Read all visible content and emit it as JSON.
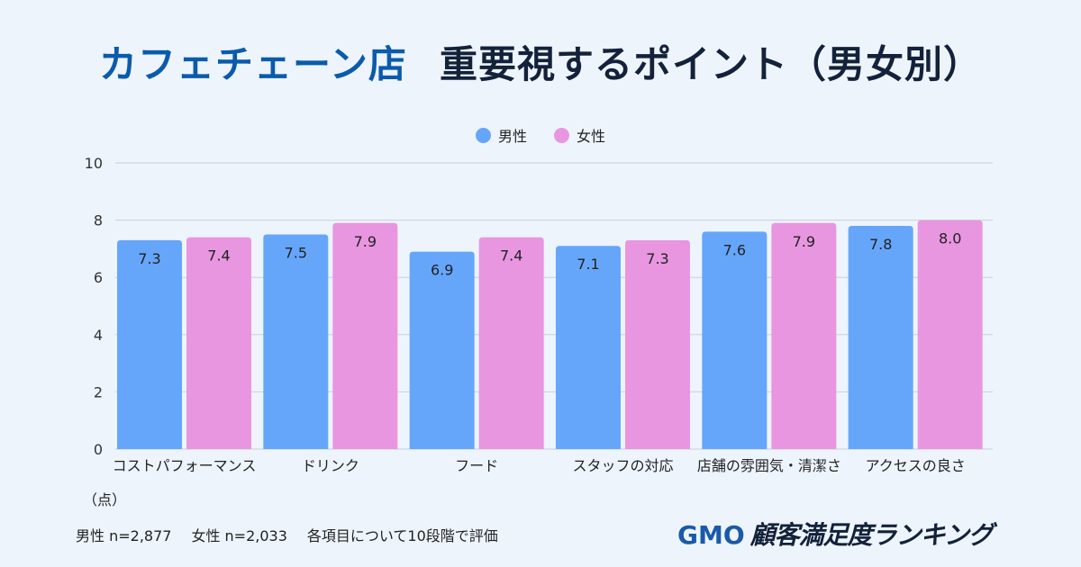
{
  "title": {
    "part1": "カフェチェーン店",
    "part2": "重要視するポイント（男女別）"
  },
  "unit_label": "（点）",
  "footer": {
    "male_n": "男性 n=2,877",
    "female_n": "女性 n=2,033",
    "note": "各項目について10段階で評価"
  },
  "logo": {
    "brand": "GMO",
    "text": "顧客満足度ランキング"
  },
  "chart_data": {
    "type": "bar",
    "title": "カフェチェーン店　重要視するポイント（男女別）",
    "ylabel": "（点）",
    "ylim": [
      0,
      10
    ],
    "yticks": [
      "0",
      "2",
      "4",
      "6",
      "8",
      "10"
    ],
    "grid": true,
    "legend_placement": "top-center",
    "categories": [
      "コストパフォーマンス",
      "ドリンク",
      "フード",
      "スタッフの対応",
      "店舗の雰囲気・清潔さ",
      "アクセスの良さ"
    ],
    "series": [
      {
        "name": "男性",
        "color": "#66a6fa",
        "values": [
          7.3,
          7.5,
          6.9,
          7.1,
          7.6,
          7.8
        ],
        "labels": [
          "7.3",
          "7.5",
          "6.9",
          "7.1",
          "7.6",
          "7.8"
        ]
      },
      {
        "name": "女性",
        "color": "#e996e0",
        "values": [
          7.4,
          7.9,
          7.4,
          7.3,
          7.9,
          8.0
        ],
        "labels": [
          "7.4",
          "7.9",
          "7.4",
          "7.3",
          "7.9",
          "8.0"
        ]
      }
    ]
  }
}
